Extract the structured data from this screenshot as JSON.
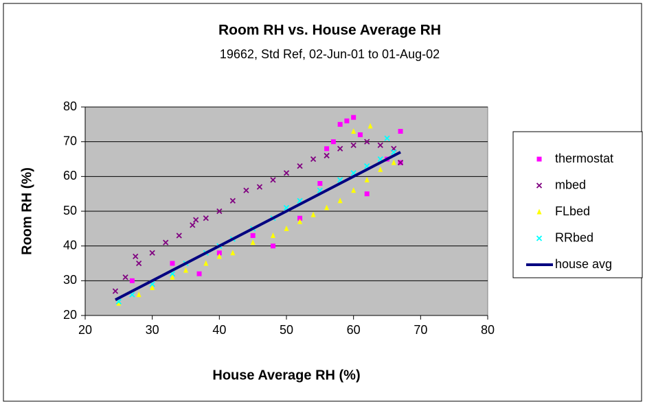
{
  "chart_data": {
    "type": "scatter",
    "title": "Room RH vs. House Average RH",
    "subtitle": "19662, Std Ref, 02-Jun-01 to 01-Aug-02",
    "x_label": "House Average RH (%)",
    "y_label": "Room RH (%)",
    "xlim": [
      20,
      80
    ],
    "xticks": [
      20,
      30,
      40,
      50,
      60,
      70,
      80
    ],
    "ylim": [
      20,
      80
    ],
    "yticks": [
      20,
      30,
      40,
      50,
      60,
      70,
      80
    ],
    "grid": true,
    "legend": "right",
    "plot_background": "#c0c0c0",
    "series": [
      {
        "name": "thermostat",
        "color": "#ff00ff",
        "marker": "square",
        "x": [
          27,
          33,
          37,
          40,
          45,
          48,
          52,
          55,
          56,
          57,
          58,
          59,
          60,
          61,
          62,
          65,
          67,
          67
        ],
        "values": [
          30,
          35,
          32,
          38,
          43,
          40,
          48,
          58,
          68,
          70,
          75,
          76,
          77,
          72,
          55,
          65,
          73,
          64
        ]
      },
      {
        "name": "mbed",
        "color": "#800080",
        "marker": "x",
        "x": [
          24.5,
          26,
          28,
          30,
          32,
          34,
          36,
          38,
          40,
          42,
          44,
          46,
          48,
          50,
          52,
          54,
          56,
          58,
          60,
          62,
          64,
          66,
          67,
          27.5,
          36.5
        ],
        "values": [
          27,
          31,
          35,
          38,
          41,
          43,
          46,
          48,
          50,
          53,
          56,
          57,
          59,
          61,
          63,
          65,
          66,
          68,
          69,
          70,
          69,
          68,
          64,
          37,
          47.5
        ]
      },
      {
        "name": "FLbed",
        "color": "#ffff00",
        "marker": "triangle",
        "x": [
          25,
          28,
          30,
          33,
          35,
          38,
          40,
          42,
          45,
          48,
          50,
          52,
          54,
          56,
          58,
          60,
          62,
          64,
          66,
          62.5,
          60
        ],
        "values": [
          23.5,
          26,
          28,
          31,
          33,
          35,
          37,
          38,
          41,
          43,
          45,
          47,
          49,
          51,
          53,
          56,
          59,
          62,
          64,
          74.5,
          73
        ]
      },
      {
        "name": "RRbed",
        "color": "#00ffff",
        "marker": "x",
        "x": [
          25,
          27,
          30,
          33,
          35,
          38,
          40,
          42,
          45,
          48,
          50,
          52,
          55,
          58,
          60,
          62,
          64,
          66,
          65
        ],
        "values": [
          24,
          26,
          29,
          32,
          35,
          38,
          40,
          42,
          45,
          48,
          51,
          53,
          56,
          59,
          61,
          63,
          65,
          67,
          71
        ]
      },
      {
        "name": "house avg",
        "color": "#000080",
        "marker": "line",
        "x": [
          24.5,
          67
        ],
        "values": [
          24.5,
          67
        ]
      }
    ]
  }
}
